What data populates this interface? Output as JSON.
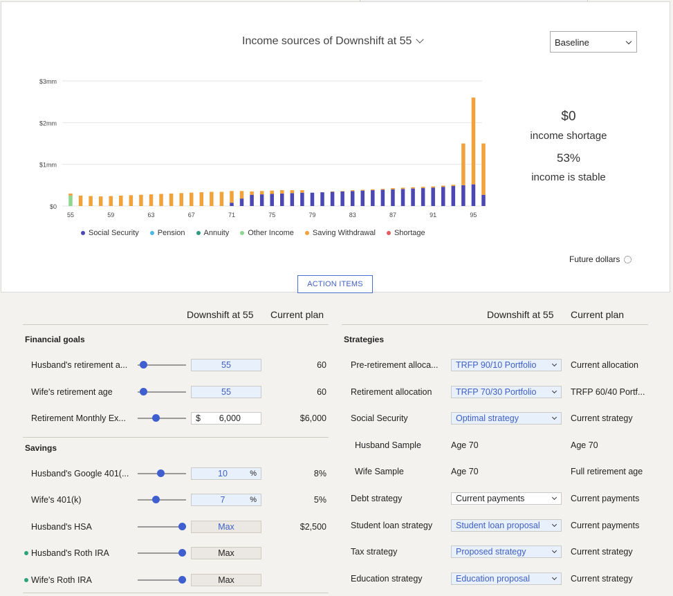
{
  "chart_header": {
    "title": "Income sources of Downshift at 55",
    "scenario_select": "Baseline"
  },
  "stats": {
    "shortage_value": "$0",
    "shortage_label": "income shortage",
    "stable_value": "53%",
    "stable_label": "income is stable"
  },
  "future_dollars": "Future dollars",
  "action_items": "ACTION ITEMS",
  "colors": {
    "social_security": "#4b47b3",
    "pension": "#4bb8e8",
    "annuity": "#2e9a80",
    "other_income": "#8fd68f",
    "saving_withdrawal": "#f2a23a",
    "shortage": "#e85a5a",
    "accent": "#3f5fc4"
  },
  "chart_data": {
    "type": "bar",
    "stacked": true,
    "x": [
      55,
      56,
      57,
      58,
      59,
      60,
      61,
      62,
      63,
      64,
      65,
      66,
      67,
      68,
      69,
      70,
      71,
      72,
      73,
      74,
      75,
      76,
      77,
      78,
      79,
      80,
      81,
      82,
      83,
      84,
      85,
      86,
      87,
      88,
      89,
      90,
      91,
      92,
      93,
      94,
      95,
      96
    ],
    "x_tick_labels": [
      "55",
      "59",
      "63",
      "67",
      "71",
      "75",
      "79",
      "83",
      "87",
      "91",
      "95"
    ],
    "y_tick_labels": [
      "$0",
      "$1mm",
      "$2mm",
      "$3mm"
    ],
    "ylim": [
      0,
      3000000
    ],
    "grid": true,
    "legend_placement": "bottom",
    "series": [
      {
        "name": "Social Security",
        "values": [
          0,
          0,
          0,
          0,
          0,
          0,
          0,
          0,
          0,
          0,
          0,
          0,
          0,
          0,
          0,
          0,
          80000,
          180000,
          270000,
          280000,
          290000,
          300000,
          310000,
          320000,
          320000,
          330000,
          340000,
          350000,
          360000,
          370000,
          380000,
          390000,
          400000,
          410000,
          420000,
          430000,
          440000,
          460000,
          480000,
          500000,
          520000,
          270000
        ]
      },
      {
        "name": "Pension",
        "values": [
          0,
          0,
          0,
          0,
          0,
          0,
          0,
          0,
          0,
          0,
          0,
          0,
          0,
          0,
          0,
          0,
          0,
          0,
          0,
          0,
          0,
          0,
          0,
          0,
          0,
          0,
          0,
          0,
          0,
          0,
          0,
          0,
          0,
          0,
          0,
          0,
          0,
          0,
          0,
          0,
          0,
          0
        ]
      },
      {
        "name": "Annuity",
        "values": [
          0,
          0,
          0,
          0,
          0,
          0,
          0,
          0,
          0,
          0,
          0,
          0,
          0,
          0,
          0,
          0,
          0,
          0,
          0,
          0,
          0,
          0,
          0,
          0,
          0,
          0,
          0,
          0,
          0,
          0,
          0,
          0,
          0,
          0,
          0,
          0,
          0,
          0,
          0,
          0,
          0,
          0
        ]
      },
      {
        "name": "Other Income",
        "values": [
          250000,
          0,
          0,
          0,
          0,
          0,
          0,
          0,
          0,
          0,
          0,
          0,
          0,
          0,
          0,
          0,
          0,
          0,
          0,
          0,
          0,
          0,
          0,
          0,
          0,
          0,
          0,
          0,
          0,
          0,
          0,
          0,
          0,
          0,
          0,
          0,
          0,
          0,
          0,
          0,
          0,
          0
        ]
      },
      {
        "name": "Saving Withdrawal",
        "values": [
          50000,
          250000,
          240000,
          230000,
          240000,
          250000,
          260000,
          270000,
          280000,
          290000,
          300000,
          310000,
          320000,
          330000,
          340000,
          340000,
          280000,
          180000,
          80000,
          80000,
          80000,
          80000,
          70000,
          60000,
          0,
          0,
          10000,
          10000,
          20000,
          20000,
          20000,
          20000,
          30000,
          30000,
          30000,
          30000,
          30000,
          30000,
          30000,
          1000000,
          2080000,
          1230000
        ]
      },
      {
        "name": "Shortage",
        "values": [
          0,
          0,
          0,
          0,
          0,
          0,
          0,
          0,
          0,
          0,
          0,
          0,
          0,
          0,
          0,
          0,
          0,
          0,
          0,
          0,
          0,
          0,
          0,
          0,
          0,
          0,
          0,
          0,
          0,
          0,
          0,
          0,
          0,
          0,
          0,
          0,
          0,
          0,
          0,
          0,
          0,
          0
        ]
      }
    ]
  },
  "left_table": {
    "col_a": "Downshift at 55",
    "col_b": "Current plan",
    "sections": [
      {
        "title": "Financial goals",
        "rows": [
          {
            "label": "Husband's retirement a...",
            "field": "55",
            "current": "60",
            "slider": 0.05,
            "kind": "blue"
          },
          {
            "label": "Wife's retirement age",
            "field": "55",
            "current": "60",
            "slider": 0.05,
            "kind": "blue"
          },
          {
            "label": "Retirement Monthly Ex...",
            "field_prefix": "$",
            "field": "6,000",
            "current": "$6,000",
            "slider": 0.35,
            "kind": "white"
          }
        ]
      },
      {
        "title": "Savings",
        "rows": [
          {
            "label": "Husband's Google 401(...",
            "field": "10",
            "suffix": "%",
            "current": "8%",
            "slider": 0.48,
            "kind": "blue"
          },
          {
            "label": "Wife's 401(k)",
            "field": "7",
            "suffix": "%",
            "current": "5%",
            "slider": 0.36,
            "kind": "blue"
          },
          {
            "label": "Husband's HSA",
            "field": "Max",
            "current": "$2,500",
            "slider": 1.0,
            "kind": "grey-blue"
          },
          {
            "label": "Husband's Roth IRA",
            "field": "Max",
            "current": "",
            "slider": 1.0,
            "kind": "grey",
            "dot": true
          },
          {
            "label": "Wife's Roth IRA",
            "field": "Max",
            "current": "",
            "slider": 1.0,
            "kind": "grey",
            "dot": true
          }
        ]
      }
    ]
  },
  "right_table": {
    "col_a": "Downshift at 55",
    "col_b": "Current plan",
    "section_title": "Strategies",
    "rows": [
      {
        "label": "Pre-retirement alloca...",
        "value": "TRFP 90/10 Portfolio",
        "current": "Current allocation",
        "kind": "dd-blue"
      },
      {
        "label": "Retirement allocation",
        "value": "TRFP 70/30 Portfolio",
        "current": "TRFP 60/40 Portf...",
        "kind": "dd-blue"
      },
      {
        "label": "Social Security",
        "value": "Optimal strategy",
        "current": "Current strategy",
        "kind": "dd-blue"
      },
      {
        "label": "Husband Sample",
        "value": "Age 70",
        "current": "Age 70",
        "kind": "text",
        "indent": true
      },
      {
        "label": "Wife Sample",
        "value": "Age 70",
        "current": "Full retirement age",
        "kind": "text",
        "indent": true
      },
      {
        "label": "Debt strategy",
        "value": "Current payments",
        "current": "Current payments",
        "kind": "dd-white"
      },
      {
        "label": "Student loan strategy",
        "value": "Student loan proposal",
        "current": "Current payments",
        "kind": "dd-blue"
      },
      {
        "label": "Tax strategy",
        "value": "Proposed strategy",
        "current": "Current strategy",
        "kind": "dd-blue"
      },
      {
        "label": "Education strategy",
        "value": "Education proposal",
        "current": "Current strategy",
        "kind": "dd-blue"
      }
    ]
  }
}
